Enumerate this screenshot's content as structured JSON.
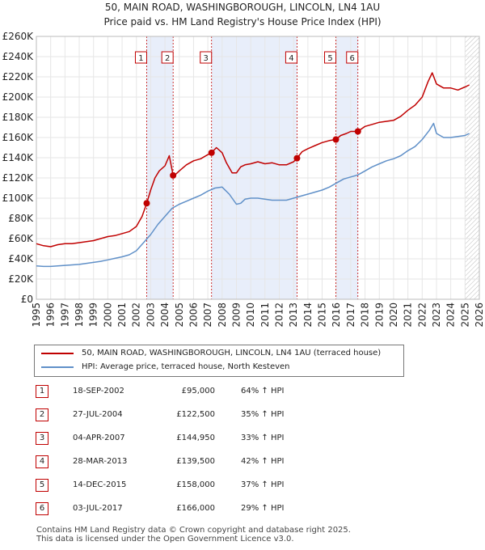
{
  "title_line1": "50, MAIN ROAD, WASHINGBOROUGH, LINCOLN, LN4 1AU",
  "title_line2": "Price paid vs. HM Land Registry's House Price Index (HPI)",
  "colors": {
    "red": "#c00000",
    "blue": "#6090c8",
    "band": "#e8eefa",
    "grid": "#e6e6e6"
  },
  "chart_data": {
    "type": "line",
    "ylim": [
      0,
      260000
    ],
    "xlim": [
      1995,
      2026
    ],
    "y_ticks": [
      0,
      20000,
      40000,
      60000,
      80000,
      100000,
      120000,
      140000,
      160000,
      180000,
      200000,
      220000,
      240000,
      260000
    ],
    "y_tick_labels": [
      "£0",
      "£20K",
      "£40K",
      "£60K",
      "£80K",
      "£100K",
      "£120K",
      "£140K",
      "£160K",
      "£180K",
      "£200K",
      "£220K",
      "£240K",
      "£260K"
    ],
    "x_ticks": [
      1995,
      1996,
      1997,
      1998,
      1999,
      2000,
      2001,
      2002,
      2003,
      2004,
      2005,
      2006,
      2007,
      2008,
      2009,
      2010,
      2011,
      2012,
      2013,
      2014,
      2015,
      2016,
      2017,
      2018,
      2019,
      2020,
      2021,
      2022,
      2023,
      2024,
      2025,
      2026
    ],
    "shaded_ranges": [
      [
        2002.72,
        2004.57
      ],
      [
        2007.26,
        2013.24
      ],
      [
        2015.96,
        2017.5
      ]
    ],
    "hatch_from": 2025.0,
    "series": [
      {
        "name": "50, MAIN ROAD, WASHINGBOROUGH, LINCOLN, LN4 1AU (terraced house)",
        "color": "#c00000",
        "x": [
          1995.0,
          1995.5,
          1996.0,
          1996.5,
          1997.0,
          1997.5,
          1998.0,
          1998.5,
          1999.0,
          1999.5,
          2000.0,
          2000.5,
          2001.0,
          2001.5,
          2002.0,
          2002.4,
          2002.72,
          2003.0,
          2003.3,
          2003.6,
          2004.0,
          2004.3,
          2004.57,
          2004.7,
          2005.0,
          2005.5,
          2006.0,
          2006.5,
          2007.0,
          2007.26,
          2007.6,
          2008.0,
          2008.3,
          2008.7,
          2009.0,
          2009.3,
          2009.6,
          2010.0,
          2010.5,
          2011.0,
          2011.5,
          2012.0,
          2012.5,
          2013.0,
          2013.24,
          2013.6,
          2014.0,
          2014.5,
          2015.0,
          2015.5,
          2015.96,
          2016.3,
          2016.7,
          2017.0,
          2017.5,
          2018.0,
          2018.5,
          2019.0,
          2019.5,
          2020.0,
          2020.5,
          2021.0,
          2021.5,
          2022.0,
          2022.4,
          2022.7,
          2023.0,
          2023.5,
          2024.0,
          2024.5,
          2025.0,
          2025.3
        ],
        "values": [
          55000,
          53000,
          52000,
          54000,
          55000,
          55000,
          56000,
          57000,
          58000,
          60000,
          62000,
          63000,
          65000,
          67000,
          72000,
          82000,
          95000,
          108000,
          120000,
          127000,
          132000,
          142000,
          122500,
          123000,
          127000,
          133000,
          137000,
          139000,
          143000,
          144950,
          150000,
          145000,
          135000,
          125000,
          125000,
          131000,
          133000,
          134000,
          136000,
          134000,
          135000,
          133000,
          133000,
          136000,
          139500,
          146000,
          149000,
          152000,
          155000,
          157000,
          158000,
          162000,
          164000,
          166000,
          166000,
          171000,
          173000,
          175000,
          176000,
          177000,
          181000,
          187000,
          192000,
          200000,
          215000,
          224000,
          213000,
          209000,
          209000,
          207000,
          210000,
          212000
        ]
      },
      {
        "name": "HPI: Average price, terraced house, North Kesteven",
        "color": "#6090c8",
        "x": [
          1995.0,
          1995.5,
          1996.0,
          1996.5,
          1997.0,
          1997.5,
          1998.0,
          1998.5,
          1999.0,
          1999.5,
          2000.0,
          2000.5,
          2001.0,
          2001.5,
          2002.0,
          2002.5,
          2003.0,
          2003.5,
          2004.0,
          2004.5,
          2005.0,
          2005.5,
          2006.0,
          2006.5,
          2007.0,
          2007.5,
          2008.0,
          2008.5,
          2009.0,
          2009.3,
          2009.6,
          2010.0,
          2010.5,
          2011.0,
          2011.5,
          2012.0,
          2012.5,
          2013.0,
          2013.5,
          2014.0,
          2014.5,
          2015.0,
          2015.5,
          2016.0,
          2016.5,
          2017.0,
          2017.5,
          2018.0,
          2018.5,
          2019.0,
          2019.5,
          2020.0,
          2020.5,
          2021.0,
          2021.5,
          2022.0,
          2022.5,
          2022.8,
          2023.0,
          2023.5,
          2024.0,
          2024.5,
          2025.0,
          2025.3
        ],
        "values": [
          33000,
          32500,
          32500,
          33000,
          33500,
          34000,
          34500,
          35500,
          36500,
          37500,
          39000,
          40500,
          42000,
          44000,
          48000,
          56000,
          64000,
          74000,
          82000,
          90000,
          94000,
          97000,
          100000,
          103000,
          107000,
          110000,
          111000,
          104000,
          94000,
          95000,
          99000,
          100000,
          100000,
          99000,
          98000,
          98000,
          98000,
          100000,
          102000,
          104000,
          106000,
          108000,
          111000,
          115000,
          119000,
          121000,
          123000,
          127000,
          131000,
          134000,
          137000,
          139000,
          142000,
          147000,
          151000,
          158000,
          167000,
          174000,
          164000,
          160000,
          160000,
          161000,
          162000,
          164000
        ]
      }
    ],
    "sales": [
      {
        "label": "1",
        "x": 2002.72,
        "value": 95000
      },
      {
        "label": "2",
        "x": 2004.57,
        "value": 122500
      },
      {
        "label": "3",
        "x": 2007.26,
        "value": 144950
      },
      {
        "label": "4",
        "x": 2013.24,
        "value": 139500
      },
      {
        "label": "5",
        "x": 2015.96,
        "value": 158000
      },
      {
        "label": "6",
        "x": 2017.5,
        "value": 166000
      }
    ]
  },
  "legend": {
    "red_label": "50, MAIN ROAD, WASHINGBOROUGH, LINCOLN, LN4 1AU (terraced house)",
    "blue_label": "HPI: Average price, terraced house, North Kesteven"
  },
  "transactions": [
    {
      "num": "1",
      "date": "18-SEP-2002",
      "price": "£95,000",
      "hpi": "64% ↑ HPI"
    },
    {
      "num": "2",
      "date": "27-JUL-2004",
      "price": "£122,500",
      "hpi": "35% ↑ HPI"
    },
    {
      "num": "3",
      "date": "04-APR-2007",
      "price": "£144,950",
      "hpi": "33% ↑ HPI"
    },
    {
      "num": "4",
      "date": "28-MAR-2013",
      "price": "£139,500",
      "hpi": "42% ↑ HPI"
    },
    {
      "num": "5",
      "date": "14-DEC-2015",
      "price": "£158,000",
      "hpi": "37% ↑ HPI"
    },
    {
      "num": "6",
      "date": "03-JUL-2017",
      "price": "£166,000",
      "hpi": "29% ↑ HPI"
    }
  ],
  "footer": {
    "line1": "Contains HM Land Registry data © Crown copyright and database right 2025.",
    "line2": "This data is licensed under the Open Government Licence v3.0."
  }
}
